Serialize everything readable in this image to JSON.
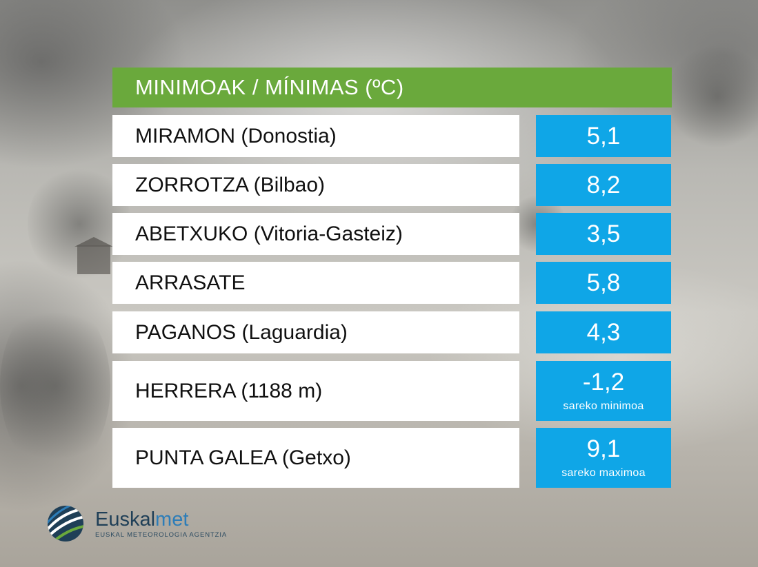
{
  "header": {
    "title": "MINIMOAK / MÍNIMAS (ºC)"
  },
  "rows": [
    {
      "station": "MIRAMON (Donostia)",
      "value": "5,1",
      "note": ""
    },
    {
      "station": "ZORROTZA (Bilbao)",
      "value": "8,2",
      "note": ""
    },
    {
      "station": "ABETXUKO (Vitoria-Gasteiz)",
      "value": "3,5",
      "note": ""
    },
    {
      "station": "ARRASATE",
      "value": "5,8",
      "note": ""
    },
    {
      "station": "PAGANOS (Laguardia)",
      "value": "4,3",
      "note": ""
    },
    {
      "station": "HERRERA (1188 m)",
      "value": "-1,2",
      "note": "sareko minimoa"
    },
    {
      "station": "PUNTA GALEA (Getxo)",
      "value": "9,1",
      "note": "sareko maximoa"
    }
  ],
  "logo": {
    "name_part1": "Euskal",
    "name_part2": "met",
    "subtitle": "EUSKAL METEOROLOGIA AGENTZIA"
  },
  "colors": {
    "header_green": "#6aa93c",
    "value_blue": "#0fa6e7",
    "label_white": "#ffffff"
  }
}
